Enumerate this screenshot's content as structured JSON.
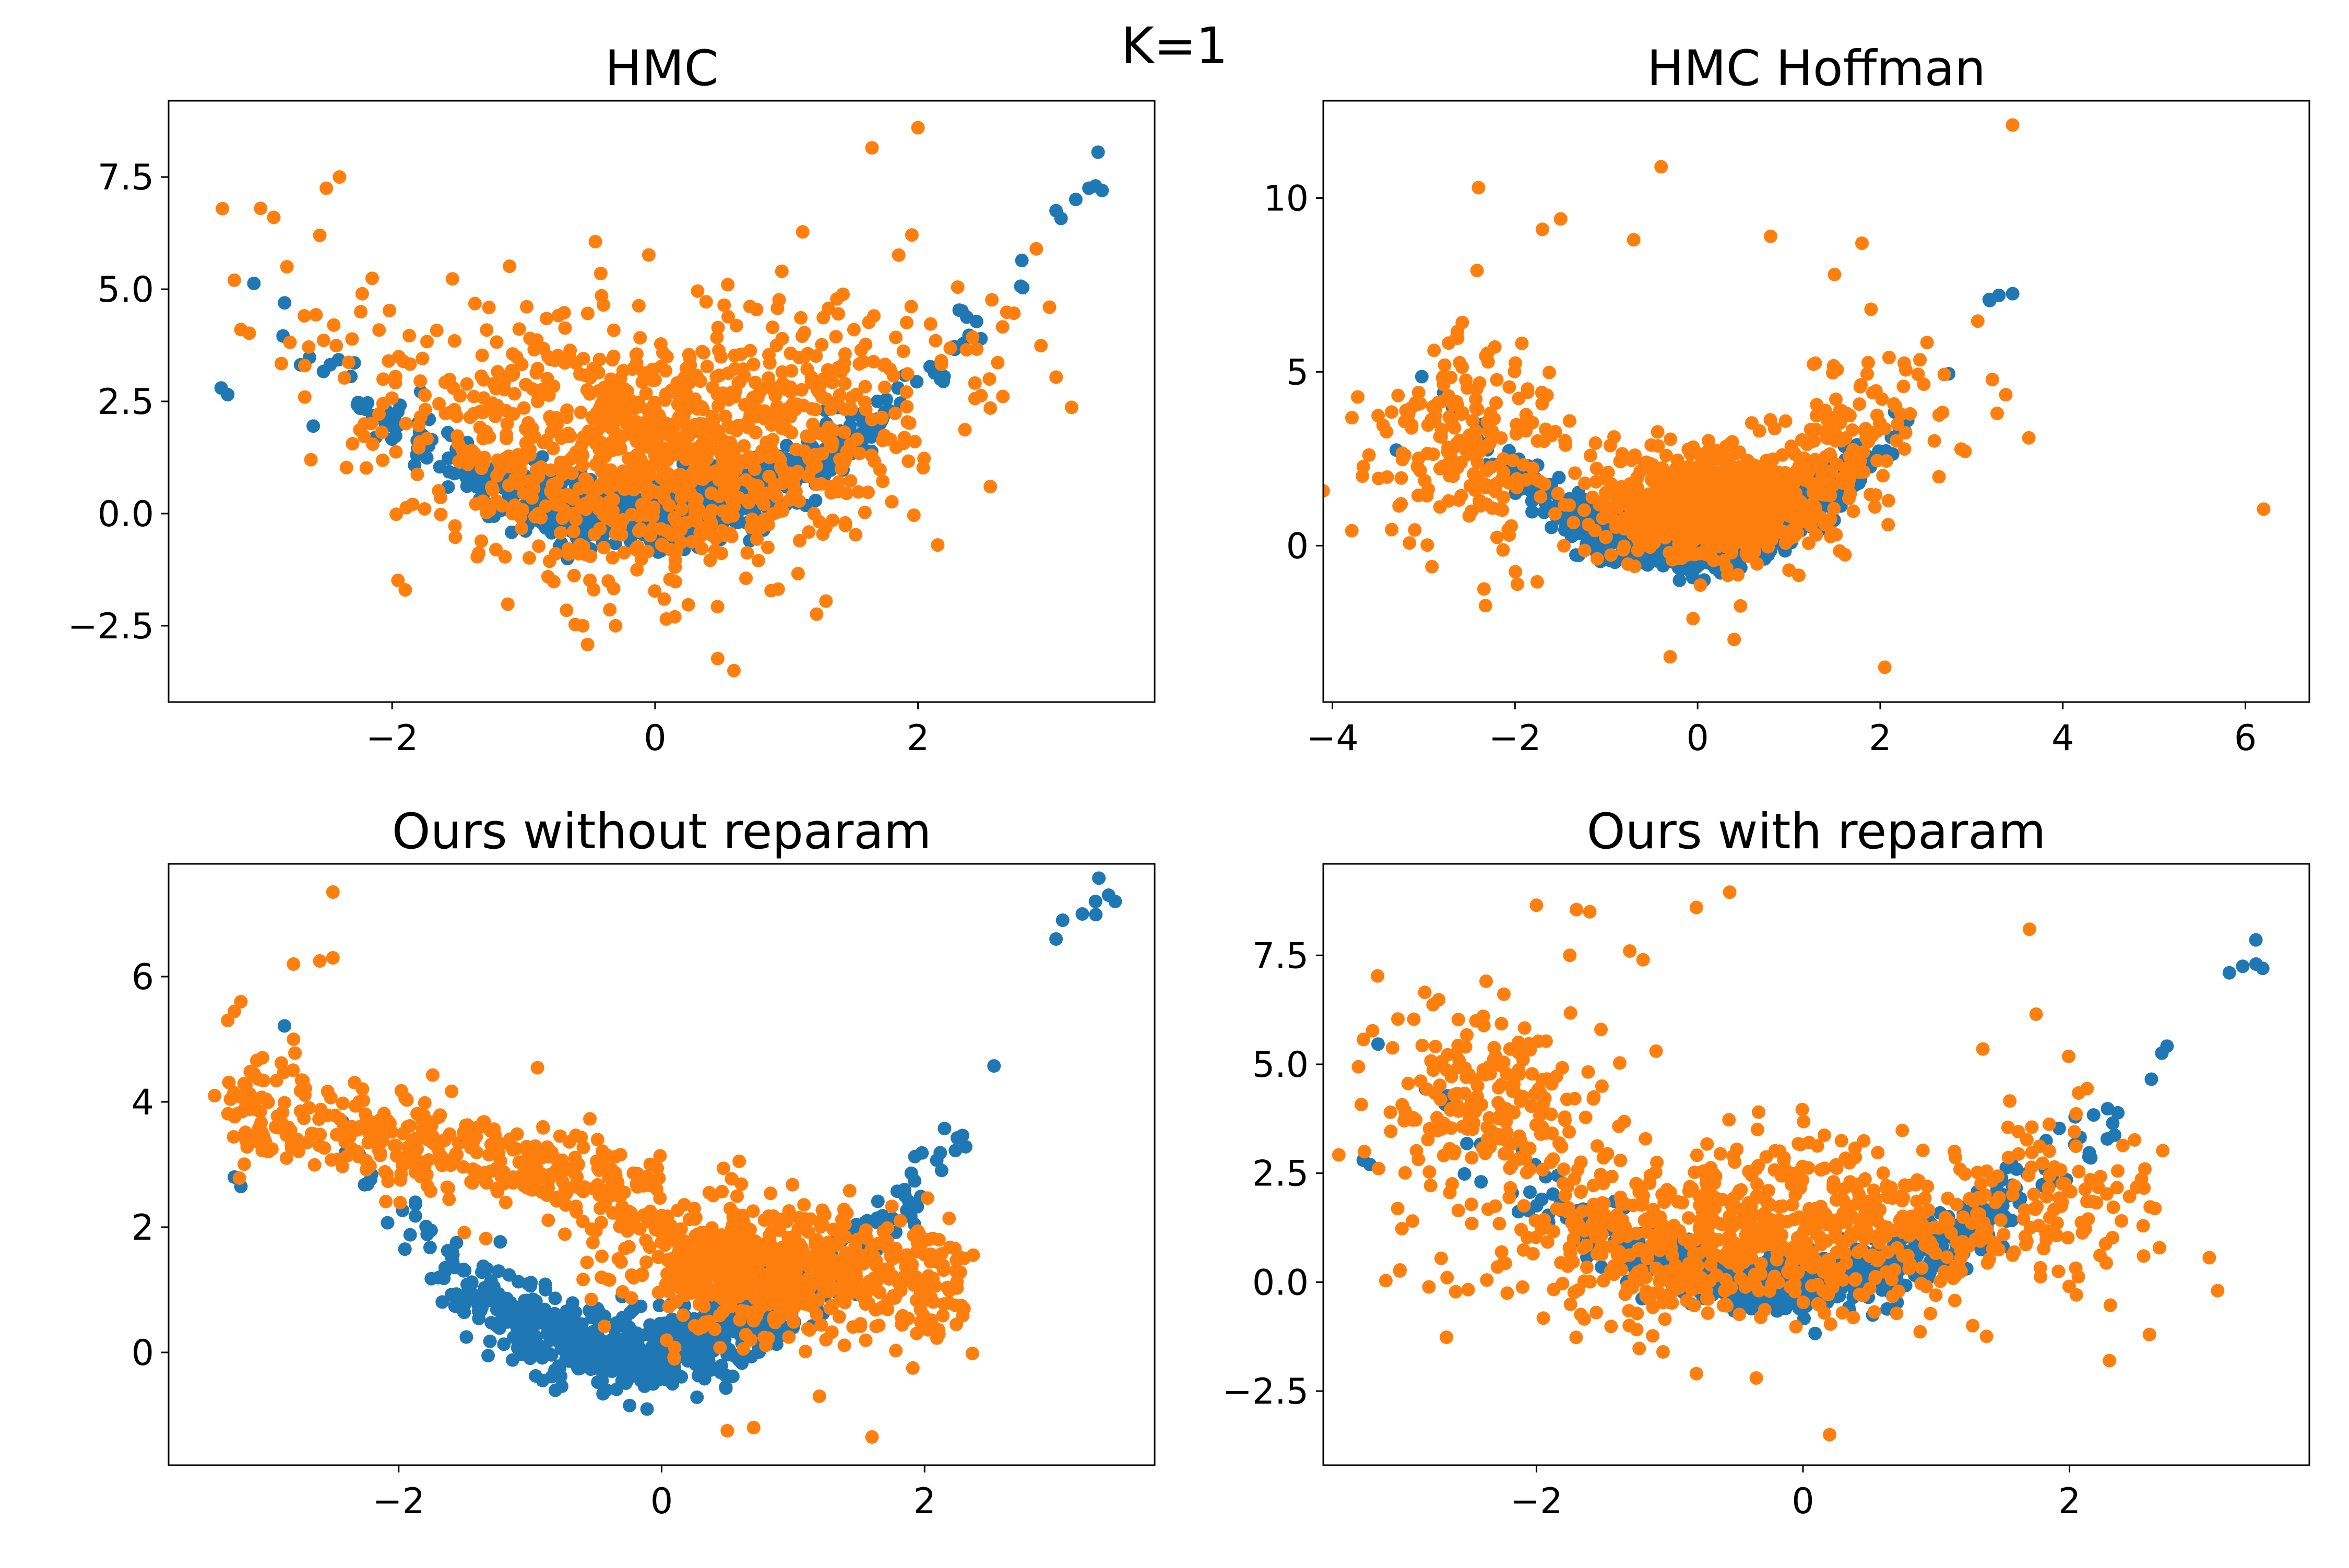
{
  "figure": {
    "title": "K=1"
  },
  "colors": {
    "series_a": "#1f77b4",
    "series_b": "#ff7f0e"
  },
  "chart_data": [
    {
      "type": "scatter",
      "title": "HMC",
      "xlim": [
        -3.7,
        3.8
      ],
      "ylim": [
        -4.2,
        9.2
      ],
      "xticks": [
        -2,
        0,
        2
      ],
      "yticks": [
        -2.5,
        0.0,
        2.5,
        5.0,
        7.5
      ],
      "grid": false,
      "series": [
        {
          "color": "#1f77b4",
          "gen": {
            "kind": "banana",
            "n": 720,
            "seed": 11,
            "sx": 1.0,
            "sy": 0.38,
            "a": 0.62,
            "b": 0.2,
            "xmin": -3.35,
            "xmax": 3.4
          },
          "points": [
            [
              -3.3,
              2.8
            ],
            [
              -3.25,
              2.65
            ],
            [
              -2.6,
              1.95
            ],
            [
              3.2,
              7.0
            ],
            [
              3.3,
              7.25
            ],
            [
              3.4,
              7.2
            ],
            [
              3.05,
              6.75
            ],
            [
              3.35,
              7.3
            ]
          ]
        },
        {
          "color": "#ff7f0e",
          "gen": {
            "kind": "gauss",
            "n": 1050,
            "seed": 23,
            "cx": 0.0,
            "cy": 1.3,
            "sx": 1.05,
            "sy": 1.45,
            "curve": 0.3
          },
          "points": [
            [
              -3.0,
              6.8
            ],
            [
              -2.9,
              6.6
            ],
            [
              -2.4,
              7.5
            ],
            [
              -2.5,
              7.25
            ],
            [
              -2.55,
              6.2
            ],
            [
              -3.2,
              5.2
            ],
            [
              -3.15,
              4.1
            ],
            [
              -2.8,
              5.5
            ],
            [
              1.65,
              8.15
            ],
            [
              2.0,
              8.6
            ],
            [
              2.9,
              5.9
            ],
            [
              3.0,
              4.6
            ],
            [
              2.55,
              2.35
            ],
            [
              2.55,
              0.6
            ],
            [
              2.15,
              -0.7
            ],
            [
              0.6,
              -3.5
            ],
            [
              -0.3,
              -2.5
            ],
            [
              -1.9,
              -1.7
            ],
            [
              -0.55,
              -2.5
            ],
            [
              0.15,
              -2.3
            ],
            [
              1.3,
              -1.95
            ]
          ]
        }
      ]
    },
    {
      "type": "scatter",
      "title": "HMC Hoffman",
      "xlim": [
        -4.1,
        6.7
      ],
      "ylim": [
        -4.5,
        12.8
      ],
      "xticks": [
        -4,
        -2,
        0,
        2,
        4,
        6
      ],
      "yticks": [
        0,
        5,
        10
      ],
      "grid": false,
      "series": [
        {
          "color": "#1f77b4",
          "gen": {
            "kind": "banana",
            "n": 720,
            "seed": 31,
            "sx": 1.0,
            "sy": 0.38,
            "a": 0.62,
            "b": 0.2,
            "xmin": -3.35,
            "xmax": 3.45
          },
          "points": [
            [
              -3.3,
              2.75
            ],
            [
              3.3,
              7.2
            ],
            [
              3.45,
              7.25
            ],
            [
              3.2,
              7.05
            ]
          ]
        },
        {
          "color": "#ff7f0e",
          "gen": {
            "kind": "mix",
            "n": 1050,
            "seed": 41
          },
          "points": [
            [
              -2.4,
              10.3
            ],
            [
              -0.4,
              10.9
            ],
            [
              3.45,
              12.1
            ],
            [
              6.2,
              1.05
            ],
            [
              -1.7,
              9.1
            ],
            [
              -1.5,
              9.4
            ],
            [
              -0.7,
              8.8
            ],
            [
              0.8,
              8.9
            ],
            [
              1.8,
              8.7
            ],
            [
              1.5,
              7.8
            ],
            [
              1.9,
              6.8
            ],
            [
              -0.3,
              -3.2
            ],
            [
              2.05,
              -3.5
            ],
            [
              -0.05,
              -2.1
            ],
            [
              0.4,
              -2.7
            ]
          ]
        }
      ]
    },
    {
      "type": "scatter",
      "title": "Ours without reparam",
      "xlim": [
        -3.75,
        3.75
      ],
      "ylim": [
        -1.8,
        7.8
      ],
      "xticks": [
        -2,
        0,
        2
      ],
      "yticks": [
        0,
        2,
        4,
        6
      ],
      "grid": false,
      "series": [
        {
          "color": "#1f77b4",
          "gen": {
            "kind": "banana",
            "n": 720,
            "seed": 51,
            "sx": 0.95,
            "sy": 0.35,
            "a": 0.62,
            "b": 0.2,
            "xmin": -3.35,
            "xmax": 3.4
          },
          "points": [
            [
              -3.25,
              2.8
            ],
            [
              -3.2,
              2.65
            ],
            [
              3.3,
              7.2
            ],
            [
              3.4,
              7.3
            ],
            [
              3.45,
              7.2
            ],
            [
              3.0,
              6.6
            ],
            [
              3.05,
              6.9
            ],
            [
              3.2,
              7.0
            ]
          ]
        },
        {
          "color": "#ff7f0e",
          "gen": {
            "kind": "band",
            "n": 1050,
            "seed": 61
          },
          "points": [
            [
              -2.5,
              7.35
            ],
            [
              -2.5,
              6.3
            ],
            [
              -2.6,
              6.25
            ],
            [
              -2.8,
              6.2
            ],
            [
              -2.8,
              5.0
            ],
            [
              -3.2,
              5.6
            ],
            [
              -3.3,
              5.3
            ],
            [
              -3.4,
              4.1
            ],
            [
              -2.3,
              4.0
            ],
            [
              0.5,
              -1.25
            ],
            [
              0.7,
              -1.2
            ],
            [
              1.6,
              -1.35
            ],
            [
              2.3,
              0.7
            ],
            [
              2.3,
              1.5
            ],
            [
              1.2,
              -0.7
            ]
          ]
        }
      ]
    },
    {
      "type": "scatter",
      "title": "Ours with reparam",
      "xlim": [
        -3.6,
        3.8
      ],
      "ylim": [
        -4.2,
        9.6
      ],
      "xticks": [
        -2,
        0,
        2
      ],
      "yticks": [
        -2.5,
        0.0,
        2.5,
        5.0,
        7.5
      ],
      "grid": false,
      "series": [
        {
          "color": "#1f77b4",
          "gen": {
            "kind": "banana",
            "n": 720,
            "seed": 71,
            "sx": 1.0,
            "sy": 0.38,
            "a": 0.62,
            "b": 0.2,
            "xmin": -3.35,
            "xmax": 3.45
          },
          "points": [
            [
              -3.3,
              2.8
            ],
            [
              -3.25,
              2.7
            ],
            [
              3.3,
              7.25
            ],
            [
              3.4,
              7.3
            ],
            [
              3.45,
              7.2
            ],
            [
              3.2,
              7.1
            ]
          ]
        },
        {
          "color": "#ff7f0e",
          "gen": {
            "kind": "mix2",
            "n": 1050,
            "seed": 81
          },
          "points": [
            [
              -2.0,
              8.65
            ],
            [
              -1.7,
              8.55
            ],
            [
              -1.6,
              8.5
            ],
            [
              -0.55,
              8.95
            ],
            [
              -0.8,
              8.6
            ],
            [
              1.7,
              8.1
            ],
            [
              -1.3,
              7.6
            ],
            [
              -1.2,
              7.4
            ],
            [
              -1.75,
              7.5
            ],
            [
              1.75,
              6.15
            ],
            [
              1.35,
              5.35
            ],
            [
              2.6,
              -1.2
            ],
            [
              0.2,
              -3.5
            ],
            [
              -0.8,
              -2.1
            ],
            [
              -0.35,
              -2.2
            ],
            [
              -1.05,
              -1.6
            ],
            [
              2.3,
              -1.8
            ]
          ]
        }
      ]
    }
  ]
}
